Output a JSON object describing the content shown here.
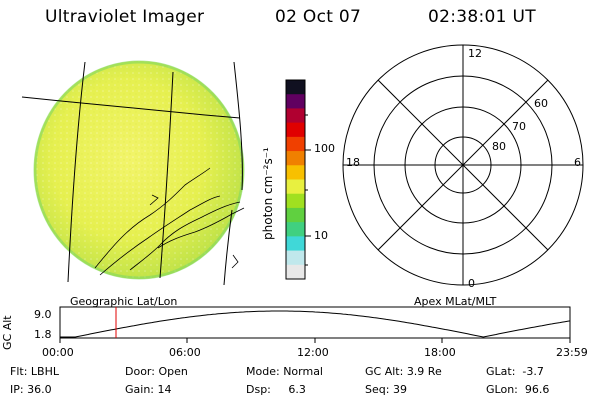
{
  "header": {
    "title": "Ultraviolet Imager",
    "date": "02 Oct 07",
    "time": "02:38:01 UT"
  },
  "left_panel": {
    "caption": "Geographic Lat/Lon"
  },
  "colorbar": {
    "unit_label": "photon cm⁻²s⁻¹",
    "ticks": [
      {
        "value": "100"
      },
      {
        "value": "10"
      }
    ],
    "colors": [
      "#e8e8e8",
      "#c0e8ec",
      "#40d8d8",
      "#40d080",
      "#60d040",
      "#a0e020",
      "#e8f040",
      "#f8c000",
      "#f08000",
      "#f04000",
      "#e00000",
      "#b00030",
      "#600060",
      "#101020"
    ]
  },
  "polar_plot": {
    "caption": "Apex MLat/MLT",
    "mlt_labels": [
      "12",
      "18",
      "6",
      "0"
    ],
    "mlat_labels": [
      "60",
      "70",
      "80"
    ]
  },
  "altitude_strip": {
    "ylabel": "GC Alt",
    "yticks": [
      "9.0",
      "1.8"
    ],
    "xticks": [
      "00:00",
      "06:00",
      "12:00",
      "18:00",
      "23:59"
    ],
    "marker_time": "02:38",
    "marker_color": "#e00000"
  },
  "info": {
    "row1": [
      {
        "key": "Flt:",
        "value": "LBHL"
      },
      {
        "key": "Door:",
        "value": "Open"
      },
      {
        "key": "Mode:",
        "value": "Normal"
      },
      {
        "key": "GC Alt:",
        "value": "3.9 Re"
      },
      {
        "key": "GLat:",
        "value": "-3.7"
      }
    ],
    "row2": [
      {
        "key": "IP:",
        "value": "36.0"
      },
      {
        "key": "Gain:",
        "value": "14"
      },
      {
        "key": "Dsp:",
        "value": "6.3"
      },
      {
        "key": "Seq:",
        "value": "39"
      },
      {
        "key": "GLon:",
        "value": "96.6"
      }
    ]
  }
}
